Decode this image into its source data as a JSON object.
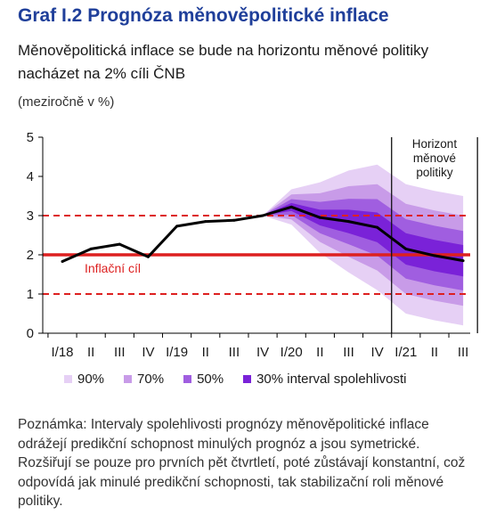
{
  "header": {
    "title": "Graf I.2  Prognóza měnověpolitické inflace",
    "subtitle": "Měnověpolitická inflace se bude na horizontu měnové politiky nacházet na 2% cíli ČNB",
    "unit": "(meziročně v %)"
  },
  "chart_data": {
    "type": "line",
    "categories": [
      "I/18",
      "II",
      "III",
      "IV",
      "I/19",
      "II",
      "III",
      "IV",
      "I/20",
      "II",
      "III",
      "IV",
      "I/21",
      "II",
      "III"
    ],
    "ylim": [
      0,
      5
    ],
    "yticks": [
      "0",
      "1",
      "2",
      "3",
      "4",
      "5"
    ],
    "series": [
      {
        "name": "",
        "values": [
          1.83,
          2.15,
          2.27,
          1.95,
          2.73,
          2.85,
          2.88,
          3.0,
          3.22,
          2.95,
          2.85,
          2.7,
          2.15,
          1.98,
          1.85
        ]
      }
    ],
    "fan": {
      "start_index": 7,
      "bands": [
        {
          "name": "90%",
          "color": "#e6d0f5",
          "half_widths": [
            0,
            0.45,
            0.9,
            1.3,
            1.6,
            1.65,
            1.65,
            1.65
          ]
        },
        {
          "name": "70%",
          "color": "#c89be8",
          "half_widths": [
            0,
            0.32,
            0.62,
            0.9,
            1.1,
            1.15,
            1.15,
            1.15
          ]
        },
        {
          "name": "50%",
          "color": "#a05ee0",
          "half_widths": [
            0,
            0.2,
            0.4,
            0.58,
            0.72,
            0.76,
            0.76,
            0.76
          ]
        },
        {
          "name": "30% interval spolehlivosti",
          "color": "#7a22d8",
          "half_widths": [
            0,
            0.1,
            0.2,
            0.3,
            0.38,
            0.4,
            0.4,
            0.4
          ]
        }
      ]
    },
    "target_line": {
      "value": 2,
      "label": "Inflační cíl",
      "color": "#dd2020"
    },
    "tolerance_band": [
      1,
      3
    ],
    "horizon": {
      "label_lines": [
        "Horizont",
        "měnové",
        "politiky"
      ],
      "x_indices": [
        11.5,
        14.5
      ]
    }
  },
  "note": "Poznámka: Intervaly spolehlivosti prognózy měnověpolitické inflace odrážejí predikční schopnost minulých prognóz a jsou symetrické. Rozšiřují se pouze pro prvních pět čtvrtletí, poté zůstávají konstantní, což odpovídá jak minulé predikční schopnosti, tak stabilizační roli měnové politiky."
}
